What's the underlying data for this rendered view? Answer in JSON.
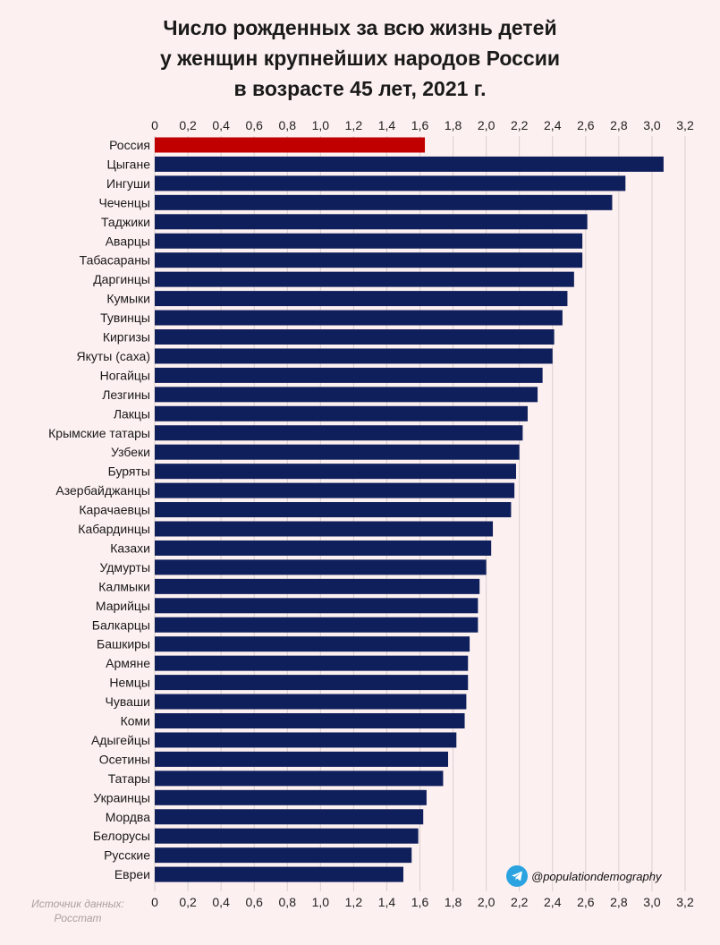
{
  "header": {
    "title_line1": "Число рожденных за всю жизнь детей",
    "title_line2": "у женщин крупнейших народов России",
    "title_line3": "в возрасте 45 лет, 2021 г."
  },
  "footer": {
    "source_line1": "Источник данных:",
    "source_line2": "Росстат",
    "credit": "@populationdemography"
  },
  "colors": {
    "highlight": "#c00000",
    "bar": "#0f1f5c",
    "background": "#fdf0f0"
  },
  "chart_data": {
    "type": "bar",
    "orientation": "horizontal",
    "title": "Число рожденных за всю жизнь детей у женщин крупнейших народов России в возрасте 45 лет, 2021 г.",
    "xlim": [
      0,
      3.2
    ],
    "ticks": [
      "0",
      "0,2",
      "0,4",
      "0,6",
      "0,8",
      "1,0",
      "1,2",
      "1,4",
      "1,6",
      "1,8",
      "2,0",
      "2,2",
      "2,4",
      "2,6",
      "2,8",
      "3,0",
      "3,2"
    ],
    "grid": true,
    "highlight_category": "Россия",
    "categories": [
      "Россия",
      "Цыгане",
      "Ингуши",
      "Чеченцы",
      "Таджики",
      "Аварцы",
      "Табасараны",
      "Даргинцы",
      "Кумыки",
      "Тувинцы",
      "Киргизы",
      "Якуты (саха)",
      "Ногайцы",
      "Лезгины",
      "Лакцы",
      "Крымские татары",
      "Узбеки",
      "Буряты",
      "Азербайджанцы",
      "Карачаевцы",
      "Кабардинцы",
      "Казахи",
      "Удмурты",
      "Калмыки",
      "Марийцы",
      "Балкарцы",
      "Башкиры",
      "Армяне",
      "Немцы",
      "Чуваши",
      "Коми",
      "Адыгейцы",
      "Осетины",
      "Татары",
      "Украинцы",
      "Мордва",
      "Белорусы",
      "Русские",
      "Евреи"
    ],
    "values": [
      1.63,
      3.07,
      2.84,
      2.76,
      2.61,
      2.58,
      2.58,
      2.53,
      2.49,
      2.46,
      2.41,
      2.4,
      2.34,
      2.31,
      2.25,
      2.22,
      2.2,
      2.18,
      2.17,
      2.15,
      2.04,
      2.03,
      2.0,
      1.96,
      1.95,
      1.95,
      1.9,
      1.89,
      1.89,
      1.88,
      1.87,
      1.82,
      1.77,
      1.74,
      1.64,
      1.62,
      1.59,
      1.55,
      1.5
    ]
  }
}
